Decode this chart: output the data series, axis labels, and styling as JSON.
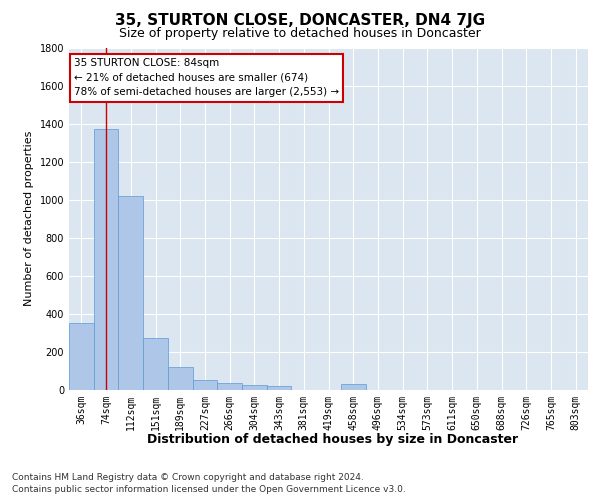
{
  "title": "35, STURTON CLOSE, DONCASTER, DN4 7JG",
  "subtitle": "Size of property relative to detached houses in Doncaster",
  "xlabel": "Distribution of detached houses by size in Doncaster",
  "ylabel": "Number of detached properties",
  "categories": [
    "36sqm",
    "74sqm",
    "112sqm",
    "151sqm",
    "189sqm",
    "227sqm",
    "266sqm",
    "304sqm",
    "343sqm",
    "381sqm",
    "419sqm",
    "458sqm",
    "496sqm",
    "534sqm",
    "573sqm",
    "611sqm",
    "650sqm",
    "688sqm",
    "726sqm",
    "765sqm",
    "803sqm"
  ],
  "values": [
    350,
    1370,
    1020,
    275,
    120,
    50,
    35,
    25,
    20,
    0,
    0,
    30,
    0,
    0,
    0,
    0,
    0,
    0,
    0,
    0,
    0
  ],
  "bar_color": "#aec6e8",
  "bar_edge_color": "#5b9bd5",
  "figure_bg": "#ffffff",
  "plot_bg": "#dce6f0",
  "annotation_box_text": "35 STURTON CLOSE: 84sqm\n← 21% of detached houses are smaller (674)\n78% of semi-detached houses are larger (2,553) →",
  "annotation_box_color": "#ffffff",
  "annotation_box_edge_color": "#cc0000",
  "vline_x": 1,
  "vline_color": "#cc0000",
  "ylim": [
    0,
    1800
  ],
  "yticks": [
    0,
    200,
    400,
    600,
    800,
    1000,
    1200,
    1400,
    1600,
    1800
  ],
  "footer_line1": "Contains HM Land Registry data © Crown copyright and database right 2024.",
  "footer_line2": "Contains public sector information licensed under the Open Government Licence v3.0.",
  "title_fontsize": 11,
  "subtitle_fontsize": 9,
  "tick_fontsize": 7,
  "ylabel_fontsize": 8,
  "xlabel_fontsize": 9,
  "annotation_fontsize": 7.5,
  "footer_fontsize": 6.5
}
